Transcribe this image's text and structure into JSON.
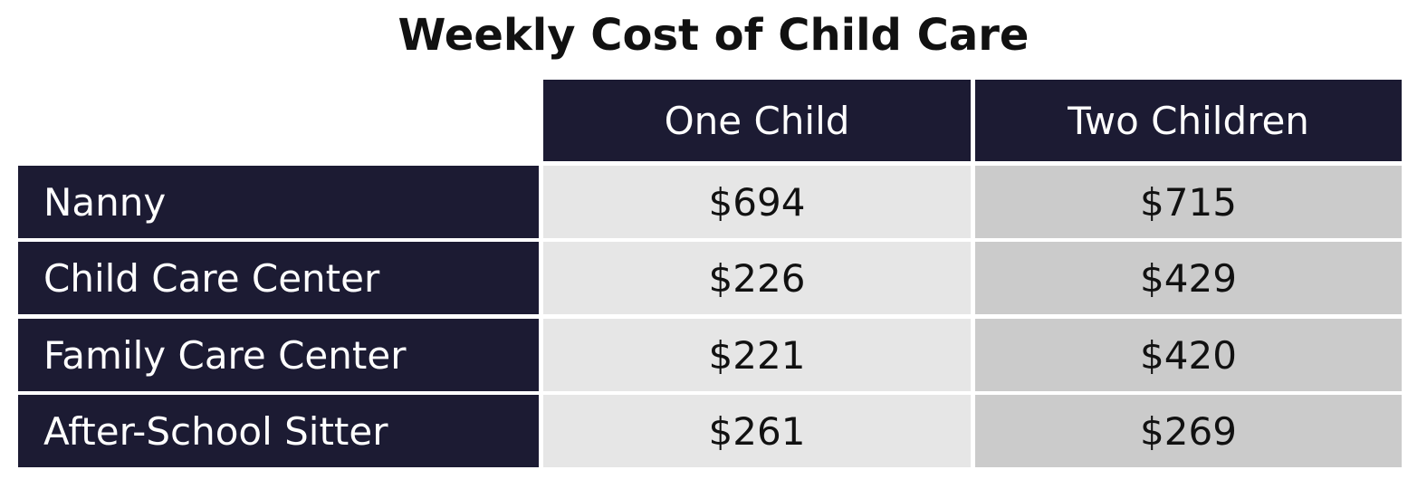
{
  "chart_data": {
    "type": "table",
    "title": "Weekly Cost of Child Care",
    "columns": [
      "One Child",
      "Two Children"
    ],
    "rows": [
      {
        "label": "Nanny",
        "values": [
          "$694",
          "$715"
        ]
      },
      {
        "label": "Child Care Center",
        "values": [
          "$226",
          "$429"
        ]
      },
      {
        "label": "Family Care Center",
        "values": [
          "$221",
          "$420"
        ]
      },
      {
        "label": "After-School Sitter",
        "values": [
          "$261",
          "$269"
        ]
      }
    ],
    "colors": {
      "header_bg": "#1c1b33",
      "header_text": "#ffffff",
      "col1_bg": "#e6e6e6",
      "col2_bg": "#cbcbcb"
    }
  }
}
